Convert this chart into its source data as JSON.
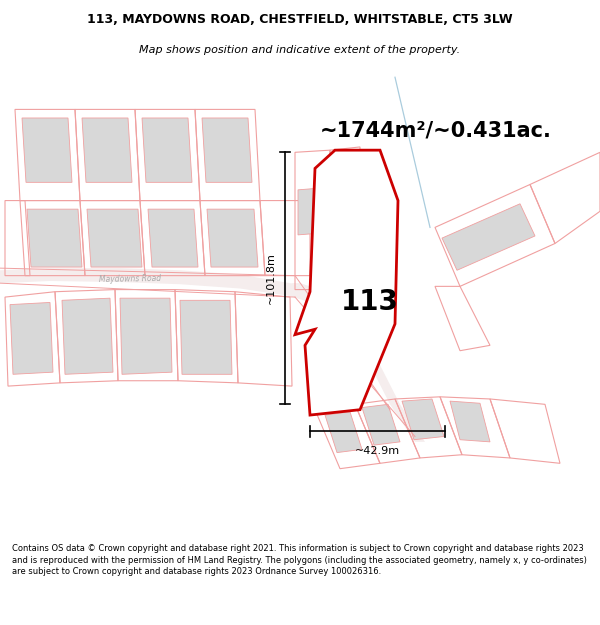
{
  "title_line1": "113, MAYDOWNS ROAD, CHESTFIELD, WHITSTABLE, CT5 3LW",
  "title_line2": "Map shows position and indicative extent of the property.",
  "area_text": "~1744m²/~0.431ac.",
  "label_113": "113",
  "label_width": "~42.9m",
  "label_height": "~101.8m",
  "footer_text": "Contains OS data © Crown copyright and database right 2021. This information is subject to Crown copyright and database rights 2023 and is reproduced with the permission of HM Land Registry. The polygons (including the associated geometry, namely x, y co-ordinates) are subject to Crown copyright and database rights 2023 Ordnance Survey 100026316.",
  "bg_color": "#ffffff",
  "map_bg_color": "#ffffff",
  "plot_stroke": "#cc0000",
  "plot_fill": "#ffffff",
  "other_stroke": "#f0a0a0",
  "building_fill": "#d8d8d8",
  "building_stroke": "#f0a0a0",
  "road_fill": "#f5eded",
  "dim_color": "#000000",
  "road_label_color": "#aaaaaa",
  "blue_line_color": "#aaccdd"
}
